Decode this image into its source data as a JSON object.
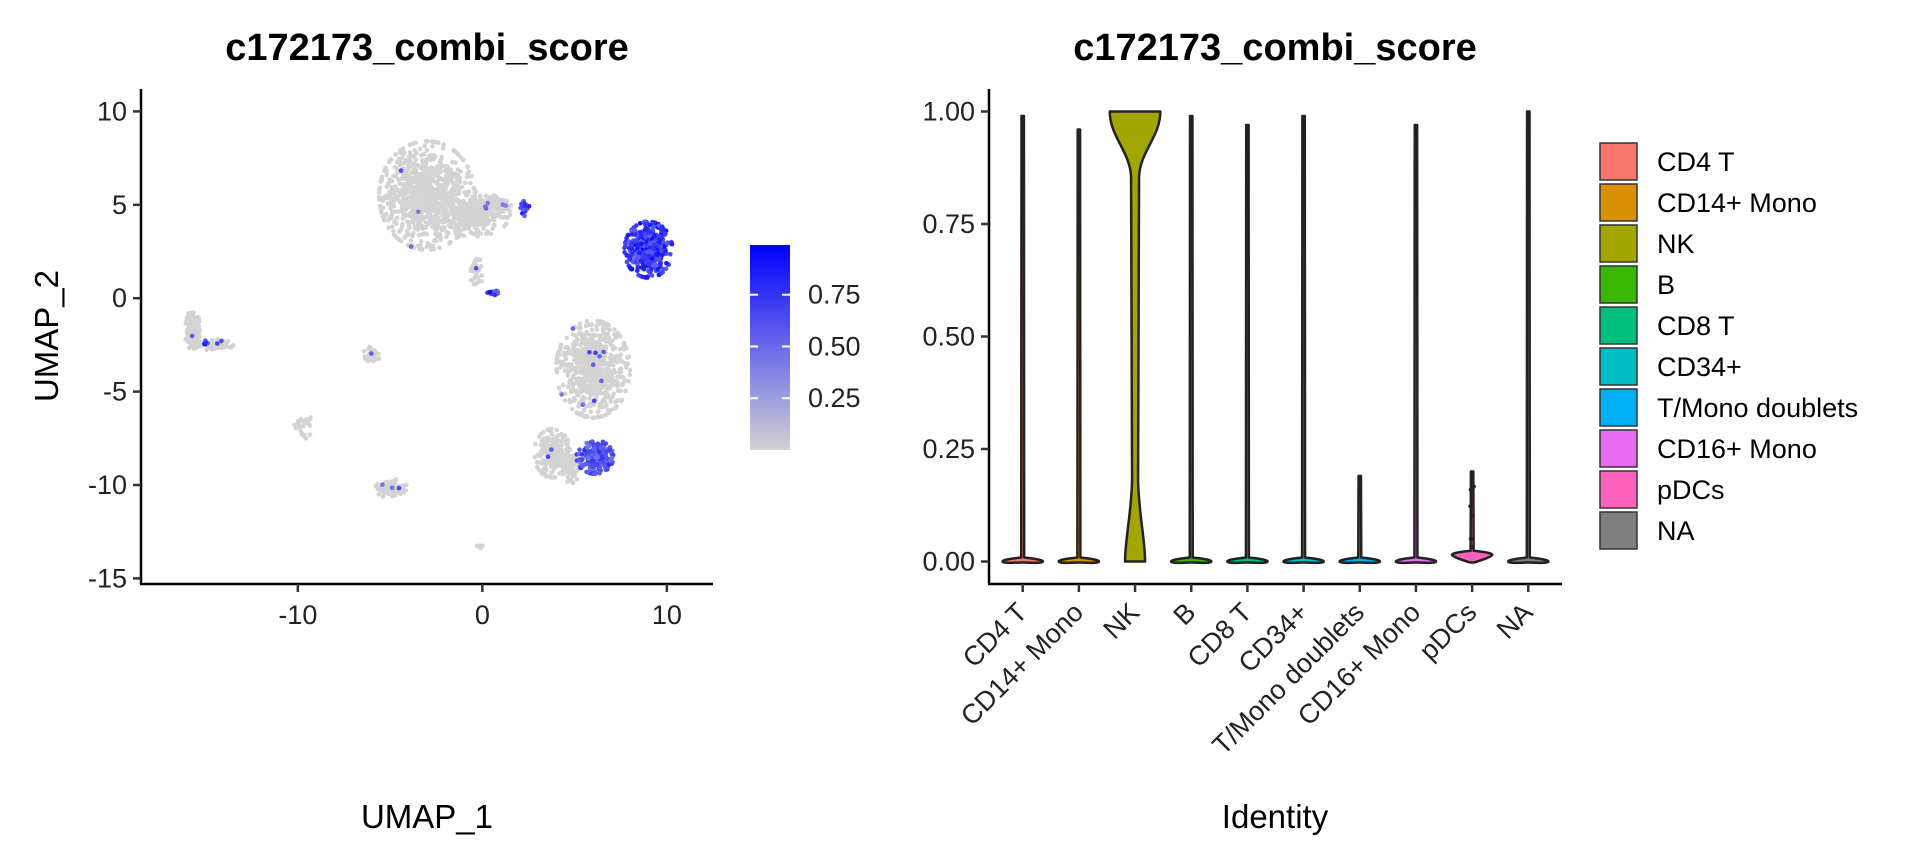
{
  "chart_data": [
    {
      "type": "scatter",
      "title": "c172173_combi_score",
      "xlabel": "UMAP_1",
      "ylabel": "UMAP_2",
      "xlim": [
        -18.5,
        12.5
      ],
      "ylim": [
        -15.3,
        11.2
      ],
      "x_ticks": [
        -10,
        0,
        10
      ],
      "y_ticks": [
        10,
        5,
        0,
        -5,
        -10,
        -15
      ],
      "grid": false,
      "colorbar": {
        "low_color": "#d3d3d3",
        "high_color": "#0000ff",
        "range": [
          0,
          0.99
        ],
        "ticks": [
          0.75,
          0.5,
          0.25
        ],
        "tick_labels": [
          "0.75",
          "0.50",
          "0.25"
        ]
      },
      "clusters": [
        {
          "cx": -3.0,
          "cy": 5.5,
          "rx": 2.6,
          "ry": 2.9,
          "n": 900,
          "score": 0
        },
        {
          "cx": -0.5,
          "cy": 4.5,
          "rx": 2.0,
          "ry": 1.2,
          "n": 300,
          "score": 0
        },
        {
          "cx": 0.8,
          "cy": 5.1,
          "rx": 0.8,
          "ry": 0.35,
          "n": 60,
          "score": 0
        },
        {
          "cx": -0.3,
          "cy": 1.5,
          "rx": 0.4,
          "ry": 0.8,
          "n": 40,
          "score": 0
        },
        {
          "cx": 2.3,
          "cy": 4.8,
          "rx": 0.3,
          "ry": 0.4,
          "n": 30,
          "score": 0.95
        },
        {
          "cx": 0.5,
          "cy": 0.3,
          "rx": 0.35,
          "ry": 0.15,
          "n": 15,
          "score": 0.95
        },
        {
          "cx": 9.0,
          "cy": 2.6,
          "rx": 1.3,
          "ry": 1.5,
          "n": 450,
          "score": 0.95
        },
        {
          "cx": 6.0,
          "cy": -3.8,
          "rx": 2.0,
          "ry": 2.6,
          "n": 700,
          "score": 0
        },
        {
          "cx": 3.8,
          "cy": -8.3,
          "rx": 1.0,
          "ry": 1.3,
          "n": 200,
          "score": 0
        },
        {
          "cx": 4.8,
          "cy": -9.0,
          "rx": 0.5,
          "ry": 0.9,
          "n": 80,
          "score": 0
        },
        {
          "cx": 6.1,
          "cy": -8.5,
          "rx": 1.0,
          "ry": 0.9,
          "n": 220,
          "score": 0.8
        },
        {
          "cx": -15.7,
          "cy": -1.8,
          "rx": 0.4,
          "ry": 1.2,
          "n": 120,
          "score": 0
        },
        {
          "cx": -14.5,
          "cy": -2.5,
          "rx": 1.0,
          "ry": 0.3,
          "n": 60,
          "score": 0
        },
        {
          "cx": -15.0,
          "cy": -2.4,
          "rx": 0.15,
          "ry": 0.2,
          "n": 6,
          "score": 0.9
        },
        {
          "cx": -6.0,
          "cy": -3.0,
          "rx": 0.5,
          "ry": 0.4,
          "n": 40,
          "score": 0
        },
        {
          "cx": -9.8,
          "cy": -6.8,
          "rx": 0.6,
          "ry": 0.8,
          "n": 25,
          "score": 0
        },
        {
          "cx": -4.9,
          "cy": -10.2,
          "rx": 0.9,
          "ry": 0.5,
          "n": 110,
          "score": 0
        },
        {
          "cx": -0.1,
          "cy": -13.3,
          "rx": 0.2,
          "ry": 0.2,
          "n": 8,
          "score": 0
        }
      ]
    },
    {
      "type": "violin",
      "title": "c172173_combi_score",
      "xlabel": "Identity",
      "ylabel": "",
      "ylim": [
        -0.05,
        1.05
      ],
      "y_ticks": [
        0,
        0.25,
        0.5,
        0.75,
        1
      ],
      "y_tick_labels": [
        "0.00",
        "0.25",
        "0.50",
        "0.75",
        "1.00"
      ],
      "categories": [
        "CD4 T",
        "CD14+ Mono",
        "NK",
        "B",
        "CD8 T",
        "CD34+",
        "T/Mono doublets",
        "CD16+ Mono",
        "pDCs",
        "NA"
      ],
      "colors": [
        "#f8766d",
        "#d89000",
        "#a3a500",
        "#39b600",
        "#00bf7d",
        "#00bfc4",
        "#00b0f6",
        "#e76bf3",
        "#ff62bc",
        "#7f7f7f"
      ],
      "max_values": [
        0.99,
        0.96,
        1.0,
        0.99,
        0.97,
        0.99,
        0.19,
        0.97,
        0.2,
        1.0
      ],
      "mode_values": [
        0,
        0,
        0.98,
        0,
        0,
        0,
        0,
        0,
        0.015,
        0
      ],
      "legend": {
        "position": "right",
        "entries": [
          "CD4 T",
          "CD14+ Mono",
          "NK",
          "B",
          "CD8 T",
          "CD34+",
          "T/Mono doublets",
          "CD16+ Mono",
          "pDCs",
          "NA"
        ]
      },
      "grid": false
    }
  ]
}
